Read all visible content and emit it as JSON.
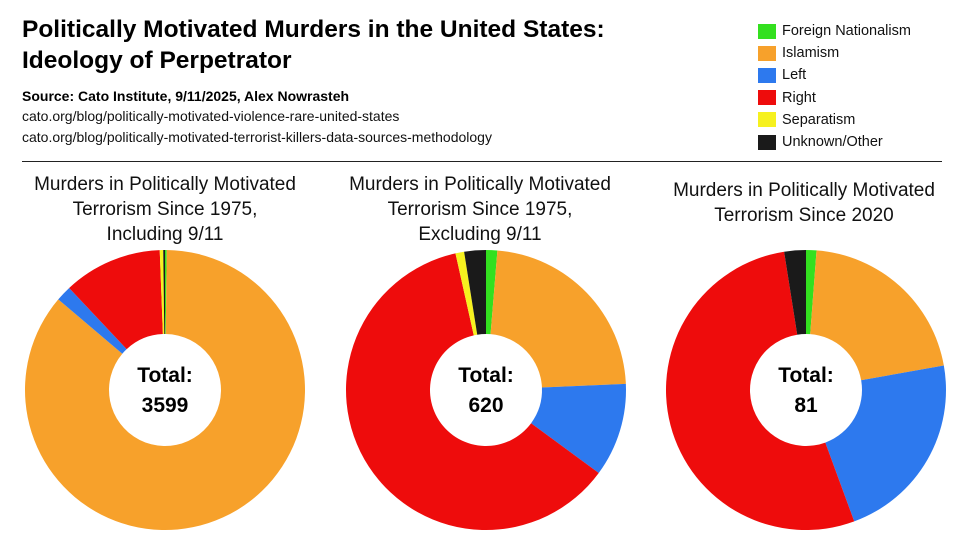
{
  "header": {
    "title_line1": "Politically Motivated Murders in the United States:",
    "title_line2": "Ideology of Perpetrator",
    "source": "Source: Cato Institute, 9/11/2025, Alex Nowrasteh",
    "link1": "cato.org/blog/politically-motivated-violence-rare-united-states",
    "link2": "cato.org/blog/politically-motivated-terrorist-killers-data-sources-methodology"
  },
  "legend": [
    {
      "label": "Foreign Nationalism",
      "color": "#33e01f"
    },
    {
      "label": "Islamism",
      "color": "#f7a12b"
    },
    {
      "label": "Left",
      "color": "#2d79ee"
    },
    {
      "label": "Right",
      "color": "#ee0c0c"
    },
    {
      "label": "Separatism",
      "color": "#f6f11f"
    },
    {
      "label": "Unknown/Other",
      "color": "#1a1a1a"
    }
  ],
  "chart_data": [
    {
      "type": "pie",
      "title_line1": "Murders in Politically Motivated",
      "title_line2": "Terrorism Since 1975,",
      "title_line3": "Including 9/11",
      "total_label": "Total:",
      "total_value": "3599",
      "slices": [
        {
          "category": "Foreign Nationalism",
          "value": 0.002
        },
        {
          "category": "Islamism",
          "value": 0.86
        },
        {
          "category": "Left",
          "value": 0.018
        },
        {
          "category": "Right",
          "value": 0.114
        },
        {
          "category": "Separatism",
          "value": 0.004
        },
        {
          "category": "Unknown/Other",
          "value": 0.002
        }
      ]
    },
    {
      "type": "pie",
      "title_line1": "Murders in Politically Motivated",
      "title_line2": "Terrorism Since 1975,",
      "title_line3": "Excluding 9/11",
      "total_label": "Total:",
      "total_value": "620",
      "slices": [
        {
          "category": "Foreign Nationalism",
          "value": 0.013
        },
        {
          "category": "Islamism",
          "value": 0.23
        },
        {
          "category": "Left",
          "value": 0.108
        },
        {
          "category": "Right",
          "value": 0.614
        },
        {
          "category": "Separatism",
          "value": 0.01
        },
        {
          "category": "Unknown/Other",
          "value": 0.025
        }
      ]
    },
    {
      "type": "pie",
      "title_line1": "Murders in Politically Motivated",
      "title_line2": "Terrorism Since 2020",
      "total_label": "Total:",
      "total_value": "81",
      "slices": [
        {
          "category": "Foreign Nationalism",
          "value": 0.012
        },
        {
          "category": "Islamism",
          "value": 0.21
        },
        {
          "category": "Left",
          "value": 0.222
        },
        {
          "category": "Right",
          "value": 0.531
        },
        {
          "category": "Separatism",
          "value": 0.0
        },
        {
          "category": "Unknown/Other",
          "value": 0.025
        }
      ]
    }
  ]
}
